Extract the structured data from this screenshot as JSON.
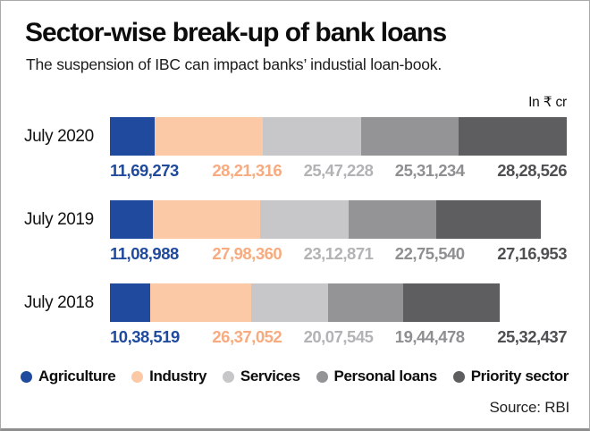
{
  "header": {
    "title": "Sector-wise break-up of bank loans",
    "subtitle": "The suspension of IBC can impact banks’ industial loan-book.",
    "unit_label": "In ₹ cr"
  },
  "source_label": "Source: RBI",
  "chart_data": {
    "type": "bar",
    "variant": "horizontal-stacked",
    "unit": "₹ cr",
    "grid": false,
    "legend_position": "bottom",
    "categories": [
      "July 2020",
      "July 2019",
      "July 2018"
    ],
    "series": [
      {
        "name": "Agriculture",
        "bar_color": "#1f4a9e",
        "label_color": "#1f4a9e",
        "values": [
          1169273,
          1108988,
          1038519
        ],
        "value_labels": [
          "11,69,273",
          "11,08,988",
          "10,38,519"
        ]
      },
      {
        "name": "Industry",
        "bar_color": "#fbc9a5",
        "label_color": "#f7ab80",
        "values": [
          2821316,
          2798360,
          2637052
        ],
        "value_labels": [
          "28,21,316",
          "27,98,360",
          "26,37,052"
        ]
      },
      {
        "name": "Services",
        "bar_color": "#c7c7c9",
        "label_color": "#b3b3b5",
        "values": [
          2547228,
          2312871,
          2007545
        ],
        "value_labels": [
          "25,47,228",
          "23,12,871",
          "20,07,545"
        ]
      },
      {
        "name": "Personal loans",
        "bar_color": "#949497",
        "label_color": "#8f8f92",
        "values": [
          2531234,
          2275540,
          1944478
        ],
        "value_labels": [
          "25,31,234",
          "22,75,540",
          "19,44,478"
        ]
      },
      {
        "name": "Priority sector",
        "bar_color": "#5e5e60",
        "label_color": "#505052",
        "values": [
          2828526,
          2716953,
          2532437
        ],
        "value_labels": [
          "28,28,526",
          "27,16,953",
          "25,32,437"
        ]
      }
    ]
  }
}
